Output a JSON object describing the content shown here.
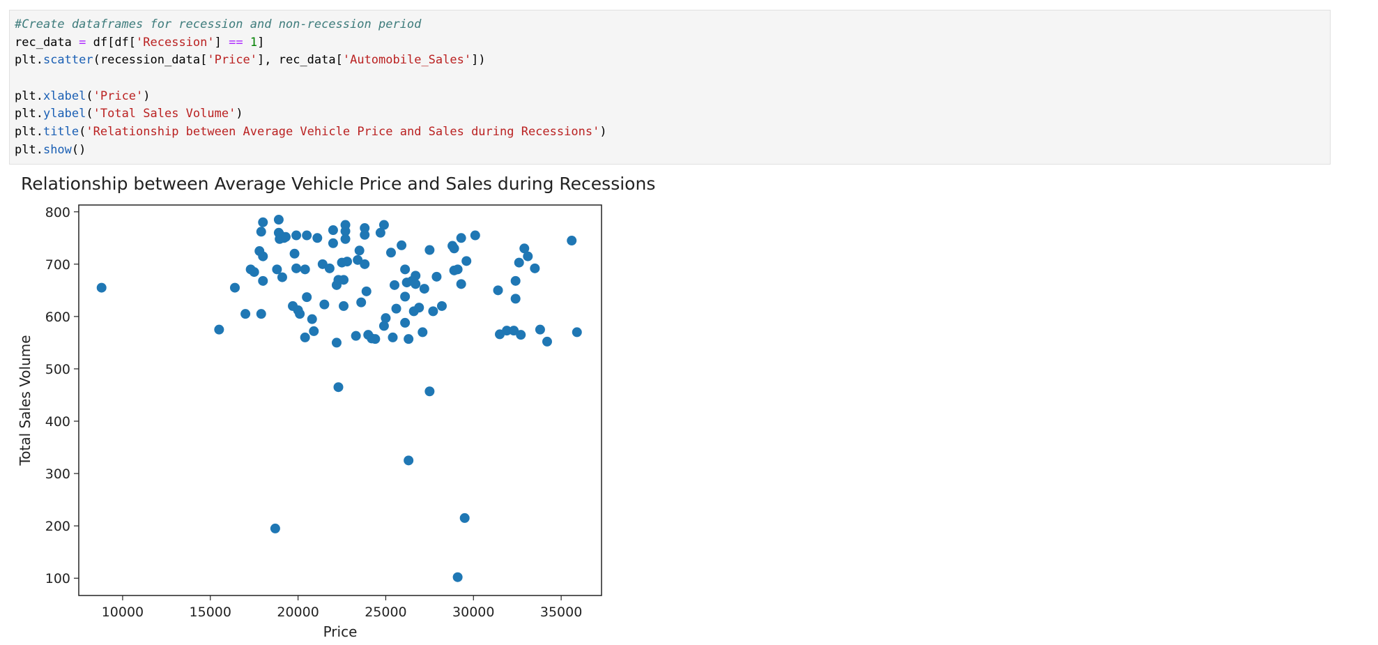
{
  "code_cell": {
    "lines": [
      [
        {
          "t": "#Create dataframes for recession and non-recession period",
          "c": "comment"
        }
      ],
      [
        {
          "t": "rec_data ",
          "c": "plain"
        },
        {
          "t": "=",
          "c": "op"
        },
        {
          "t": " df[df[",
          "c": "plain"
        },
        {
          "t": "'Recession'",
          "c": "str"
        },
        {
          "t": "] ",
          "c": "plain"
        },
        {
          "t": "==",
          "c": "op"
        },
        {
          "t": " ",
          "c": "plain"
        },
        {
          "t": "1",
          "c": "num"
        },
        {
          "t": "]",
          "c": "plain"
        }
      ],
      [
        {
          "t": "plt.",
          "c": "plain"
        },
        {
          "t": "scatter",
          "c": "attr"
        },
        {
          "t": "(recession_data[",
          "c": "plain"
        },
        {
          "t": "'Price'",
          "c": "str"
        },
        {
          "t": "], rec_data[",
          "c": "plain"
        },
        {
          "t": "'Automobile_Sales'",
          "c": "str"
        },
        {
          "t": "])",
          "c": "plain"
        }
      ],
      [],
      [
        {
          "t": "plt.",
          "c": "plain"
        },
        {
          "t": "xlabel",
          "c": "attr"
        },
        {
          "t": "(",
          "c": "plain"
        },
        {
          "t": "'Price'",
          "c": "str"
        },
        {
          "t": ")",
          "c": "plain"
        }
      ],
      [
        {
          "t": "plt.",
          "c": "plain"
        },
        {
          "t": "ylabel",
          "c": "attr"
        },
        {
          "t": "(",
          "c": "plain"
        },
        {
          "t": "'Total Sales Volume'",
          "c": "str"
        },
        {
          "t": ")",
          "c": "plain"
        }
      ],
      [
        {
          "t": "plt.",
          "c": "plain"
        },
        {
          "t": "title",
          "c": "attr"
        },
        {
          "t": "(",
          "c": "plain"
        },
        {
          "t": "'Relationship between Average Vehicle Price and Sales during Recessions'",
          "c": "str"
        },
        {
          "t": ")",
          "c": "plain"
        }
      ],
      [
        {
          "t": "plt.",
          "c": "plain"
        },
        {
          "t": "show",
          "c": "attr"
        },
        {
          "t": "()",
          "c": "plain"
        }
      ]
    ]
  },
  "chart_data": {
    "type": "scatter",
    "title": "Relationship between Average Vehicle Price and Sales during Recessions",
    "xlabel": "Price",
    "ylabel": "Total Sales Volume",
    "xlim": [
      7500,
      37300
    ],
    "ylim": [
      67,
      813
    ],
    "xticks": [
      10000,
      15000,
      20000,
      25000,
      30000,
      35000
    ],
    "yticks": [
      100,
      200,
      300,
      400,
      500,
      600,
      700,
      800
    ],
    "grid": false,
    "marker_color": "#1f77b4",
    "points": [
      [
        8800,
        655
      ],
      [
        15500,
        575
      ],
      [
        16400,
        655
      ],
      [
        17000,
        605
      ],
      [
        17300,
        690
      ],
      [
        17500,
        685
      ],
      [
        17800,
        725
      ],
      [
        17900,
        605
      ],
      [
        17900,
        762
      ],
      [
        18000,
        780
      ],
      [
        18000,
        715
      ],
      [
        18000,
        668
      ],
      [
        18700,
        195
      ],
      [
        18800,
        690
      ],
      [
        18900,
        760
      ],
      [
        18900,
        785
      ],
      [
        18950,
        748
      ],
      [
        19000,
        755
      ],
      [
        19100,
        675
      ],
      [
        19200,
        750
      ],
      [
        19300,
        752
      ],
      [
        19700,
        620
      ],
      [
        19800,
        720
      ],
      [
        19900,
        692
      ],
      [
        19900,
        755
      ],
      [
        20000,
        612
      ],
      [
        20100,
        605
      ],
      [
        20400,
        560
      ],
      [
        20400,
        690
      ],
      [
        20500,
        755
      ],
      [
        20500,
        637
      ],
      [
        20800,
        595
      ],
      [
        20900,
        572
      ],
      [
        21100,
        750
      ],
      [
        21400,
        700
      ],
      [
        21500,
        623
      ],
      [
        21800,
        692
      ],
      [
        22000,
        740
      ],
      [
        22000,
        765
      ],
      [
        22200,
        550
      ],
      [
        22200,
        660
      ],
      [
        22300,
        670
      ],
      [
        22300,
        465
      ],
      [
        22500,
        703
      ],
      [
        22600,
        620
      ],
      [
        22600,
        670
      ],
      [
        22700,
        763
      ],
      [
        22700,
        775
      ],
      [
        22700,
        748
      ],
      [
        22800,
        705
      ],
      [
        23300,
        563
      ],
      [
        23400,
        708
      ],
      [
        23500,
        726
      ],
      [
        23600,
        627
      ],
      [
        23800,
        700
      ],
      [
        23800,
        756
      ],
      [
        23800,
        769
      ],
      [
        23900,
        648
      ],
      [
        24000,
        565
      ],
      [
        24200,
        558
      ],
      [
        24400,
        557
      ],
      [
        24700,
        760
      ],
      [
        24900,
        582
      ],
      [
        24900,
        775
      ],
      [
        25000,
        597
      ],
      [
        25300,
        722
      ],
      [
        25400,
        560
      ],
      [
        25500,
        660
      ],
      [
        25600,
        615
      ],
      [
        25900,
        736
      ],
      [
        26100,
        588
      ],
      [
        26100,
        638
      ],
      [
        26100,
        690
      ],
      [
        26200,
        665
      ],
      [
        26300,
        325
      ],
      [
        26300,
        557
      ],
      [
        26500,
        668
      ],
      [
        26600,
        610
      ],
      [
        26700,
        678
      ],
      [
        26700,
        662
      ],
      [
        26900,
        617
      ],
      [
        27100,
        570
      ],
      [
        27200,
        653
      ],
      [
        27500,
        727
      ],
      [
        27500,
        457
      ],
      [
        27700,
        610
      ],
      [
        27900,
        676
      ],
      [
        28200,
        620
      ],
      [
        28800,
        735
      ],
      [
        28900,
        730
      ],
      [
        28900,
        688
      ],
      [
        29100,
        690
      ],
      [
        29100,
        102
      ],
      [
        29300,
        750
      ],
      [
        29300,
        662
      ],
      [
        29500,
        215
      ],
      [
        29600,
        706
      ],
      [
        30100,
        755
      ],
      [
        31400,
        650
      ],
      [
        31500,
        566
      ],
      [
        31900,
        573
      ],
      [
        32300,
        573
      ],
      [
        32400,
        668
      ],
      [
        32400,
        634
      ],
      [
        32600,
        703
      ],
      [
        32700,
        565
      ],
      [
        32900,
        730
      ],
      [
        33100,
        715
      ],
      [
        33500,
        692
      ],
      [
        33800,
        575
      ],
      [
        34200,
        552
      ],
      [
        35600,
        745
      ],
      [
        35900,
        570
      ]
    ]
  }
}
